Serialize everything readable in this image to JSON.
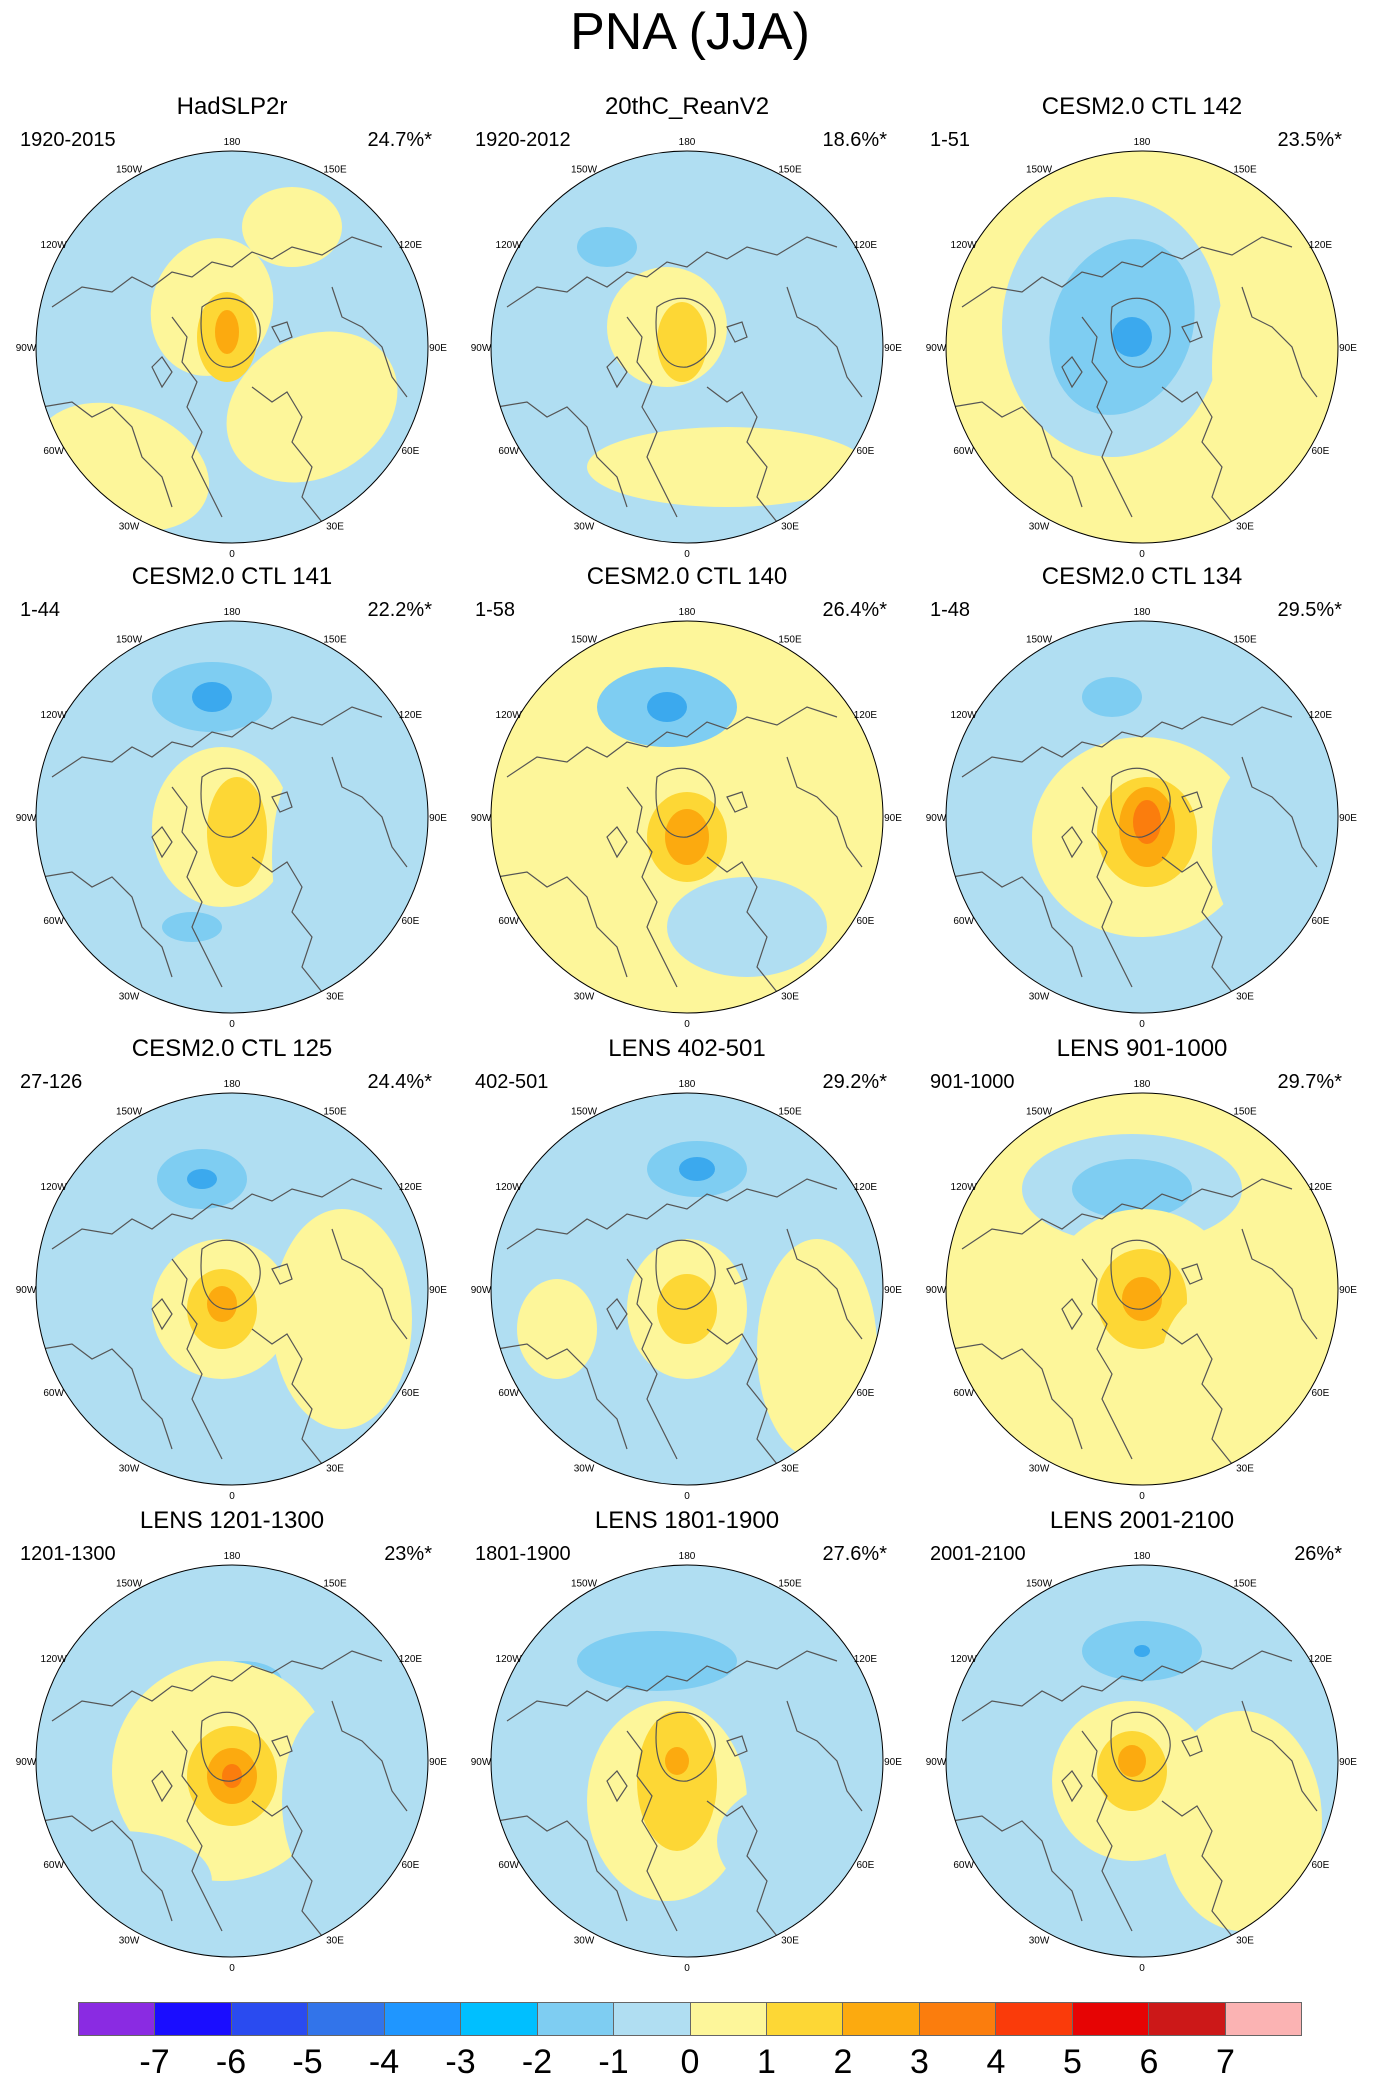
{
  "title": "PNA (JJA)",
  "panels": [
    {
      "name": "HadSLP2r",
      "period": "1920-2015",
      "pct": "24.7%*"
    },
    {
      "name": "20thC_ReanV2",
      "period": "1920-2012",
      "pct": "18.6%*"
    },
    {
      "name": "CESM2.0 CTL 142",
      "period": "1-51",
      "pct": "23.5%*"
    },
    {
      "name": "CESM2.0 CTL 141",
      "period": "1-44",
      "pct": "22.2%*"
    },
    {
      "name": "CESM2.0 CTL 140",
      "period": "1-58",
      "pct": "26.4%*"
    },
    {
      "name": "CESM2.0 CTL 134",
      "period": "1-48",
      "pct": "29.5%*"
    },
    {
      "name": "CESM2.0 CTL 125",
      "period": "27-126",
      "pct": "24.4%*"
    },
    {
      "name": "LENS 402-501",
      "period": "402-501",
      "pct": "29.2%*"
    },
    {
      "name": "LENS 901-1000",
      "period": "901-1000",
      "pct": "29.7%*"
    },
    {
      "name": "LENS 1201-1300",
      "period": "1201-1300",
      "pct": "23%*"
    },
    {
      "name": "LENS 1801-1900",
      "period": "1801-1900",
      "pct": "27.6%*"
    },
    {
      "name": "LENS 2001-2100",
      "period": "2001-2100",
      "pct": "26%*"
    }
  ],
  "lon_labels": [
    "180",
    "150E",
    "120E",
    "90E",
    "60E",
    "30E",
    "0",
    "30W",
    "60W",
    "90W",
    "120W",
    "150W"
  ],
  "colorbar": {
    "colors": [
      "#8a2be2",
      "#1a0dff",
      "#2a4bf0",
      "#3274ea",
      "#1f96ff",
      "#00bfff",
      "#7ecdf2",
      "#b0def2",
      "#fdf69a",
      "#fdd735",
      "#fcaa0f",
      "#fb7d0d",
      "#fa3b0a",
      "#e60404",
      "#cc1818",
      "#fbb3b3"
    ],
    "ticks": [
      "-7",
      "-6",
      "-5",
      "-4",
      "-3",
      "-2",
      "-1",
      "0",
      "1",
      "2",
      "3",
      "4",
      "5",
      "6",
      "7"
    ]
  },
  "colors": {
    "positive_weak": "#fdf69a",
    "negative_weak": "#b0def2",
    "negative_mid": "#7ecdf2",
    "negative_strong": "#3ba9ee",
    "positive_mid": "#fdd735",
    "positive_strong": "#fcaa0f",
    "positive_core": "#fb7d0d",
    "coast": "#555555"
  }
}
